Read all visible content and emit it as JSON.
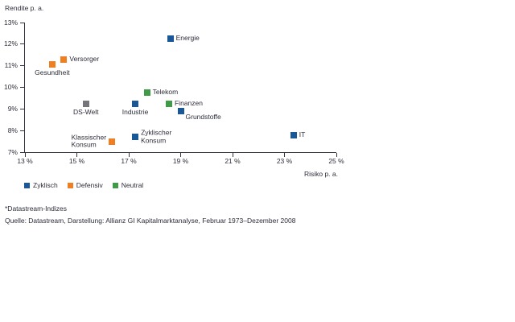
{
  "chart_data": {
    "type": "scatter",
    "y_axis": {
      "title": "Rendite p. a.",
      "min": 7,
      "max": 13,
      "ticks": [
        {
          "v": 13,
          "label": "13%"
        },
        {
          "v": 12,
          "label": "12%"
        },
        {
          "v": 11,
          "label": "11%"
        },
        {
          "v": 10,
          "label": "10%"
        },
        {
          "v": 9,
          "label": "9%"
        },
        {
          "v": 8,
          "label": "8%"
        },
        {
          "v": 7,
          "label": "7%"
        }
      ]
    },
    "x_axis": {
      "title": "Risiko p. a.",
      "min": 13,
      "max": 25,
      "ticks": [
        {
          "v": 13,
          "label": "13 %"
        },
        {
          "v": 15,
          "label": "15 %"
        },
        {
          "v": 17,
          "label": "17 %"
        },
        {
          "v": 19,
          "label": "19 %"
        },
        {
          "v": 21,
          "label": "21 %"
        },
        {
          "v": 23,
          "label": "23 %"
        },
        {
          "v": 25,
          "label": "25 %"
        }
      ]
    },
    "group_colors": {
      "zyklisch": "#1a5796",
      "defensiv": "#ee7f22",
      "neutral": "#3f9b45",
      "benchmark": "#76767a"
    },
    "points": [
      {
        "label": "Energie",
        "x": 18.6,
        "y": 12.25,
        "group": "zyklisch",
        "label_pos": "right"
      },
      {
        "label": "Versorger",
        "x": 14.5,
        "y": 11.3,
        "group": "defensiv",
        "label_pos": "right"
      },
      {
        "label": "Gesundheit",
        "x": 14.05,
        "y": 11.05,
        "group": "defensiv",
        "label_pos": "below"
      },
      {
        "label": "Telekom",
        "x": 17.7,
        "y": 9.75,
        "group": "neutral",
        "label_pos": "right"
      },
      {
        "label": "DS-Welt",
        "x": 15.35,
        "y": 9.25,
        "group": "benchmark",
        "label_pos": "below"
      },
      {
        "label": "Industrie",
        "x": 17.25,
        "y": 9.25,
        "group": "zyklisch",
        "label_pos": "below"
      },
      {
        "label": "Finanzen",
        "x": 18.55,
        "y": 9.25,
        "group": "neutral",
        "label_pos": "right"
      },
      {
        "label": "Grundstoffe",
        "x": 19.0,
        "y": 8.9,
        "group": "zyklisch",
        "label_pos": "below-right"
      },
      {
        "label": "Zyklischer\nKonsum",
        "x": 17.25,
        "y": 7.7,
        "group": "zyklisch",
        "label_pos": "right"
      },
      {
        "label": "Klassischer\nKonsum",
        "x": 16.35,
        "y": 7.5,
        "group": "defensiv",
        "label_pos": "left"
      },
      {
        "label": "IT",
        "x": 23.35,
        "y": 7.8,
        "group": "zyklisch",
        "label_pos": "right"
      }
    ],
    "legend": [
      {
        "label": "Zyklisch",
        "group": "zyklisch"
      },
      {
        "label": "Defensiv",
        "group": "defensiv"
      },
      {
        "label": "Neutral",
        "group": "neutral"
      }
    ],
    "grid": false,
    "legend_position": "bottom-left"
  },
  "footnotes": [
    "*Datastream-Indizes",
    "Quelle: Datastream, Darstellung: Allianz GI Kapitalmarktanalyse, Februar 1973–Dezember 2008"
  ]
}
